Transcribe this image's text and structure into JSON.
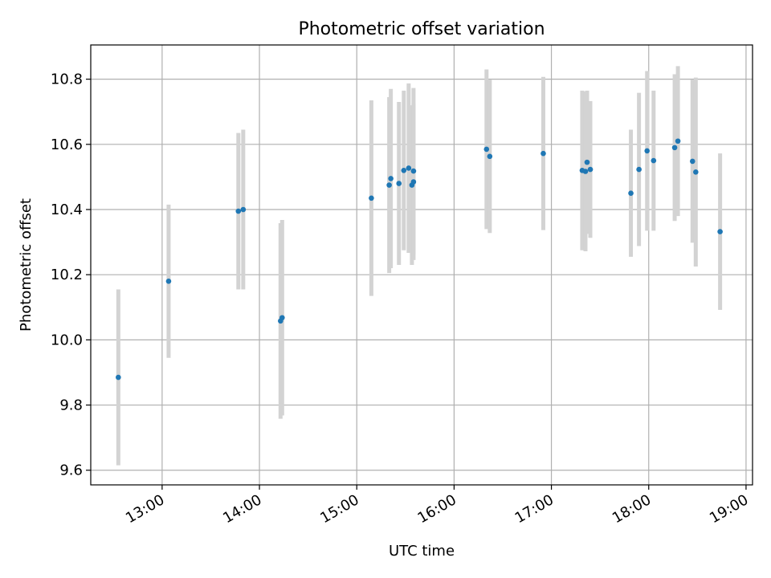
{
  "chart_data": {
    "type": "scatter",
    "title": "Photometric offset variation",
    "xlabel": "UTC time",
    "ylabel": "Photometric offset",
    "grid": true,
    "error_bars": true,
    "colors": {
      "points": "#1f77b4",
      "error_bars": "#d3d3d3",
      "grid": "#b0b0b0"
    },
    "xlim": [
      "12:16",
      "19:04"
    ],
    "ylim": [
      9.555,
      10.905
    ],
    "x_ticks": [
      "13:00",
      "14:00",
      "15:00",
      "16:00",
      "17:00",
      "18:00",
      "19:00"
    ],
    "y_ticks": [
      "9.6",
      "9.8",
      "10.0",
      "10.2",
      "10.4",
      "10.6",
      "10.8"
    ],
    "points": [
      {
        "x": "12:33",
        "y": 9.885,
        "err": 0.27
      },
      {
        "x": "13:04",
        "y": 10.18,
        "err": 0.235
      },
      {
        "x": "13:47",
        "y": 10.395,
        "err": 0.24
      },
      {
        "x": "13:50",
        "y": 10.4,
        "err": 0.245
      },
      {
        "x": "14:13",
        "y": 10.058,
        "err": 0.3
      },
      {
        "x": "14:14",
        "y": 10.068,
        "err": 0.3
      },
      {
        "x": "15:09",
        "y": 10.435,
        "err": 0.3
      },
      {
        "x": "15:20",
        "y": 10.475,
        "err": 0.27
      },
      {
        "x": "15:21",
        "y": 10.495,
        "err": 0.275
      },
      {
        "x": "15:26",
        "y": 10.48,
        "err": 0.25
      },
      {
        "x": "15:29",
        "y": 10.52,
        "err": 0.245
      },
      {
        "x": "15:32",
        "y": 10.527,
        "err": 0.26
      },
      {
        "x": "15:34",
        "y": 10.475,
        "err": 0.245
      },
      {
        "x": "15:35",
        "y": 10.485,
        "err": 0.24
      },
      {
        "x": "15:35",
        "y": 10.518,
        "err": 0.255
      },
      {
        "x": "16:20",
        "y": 10.585,
        "err": 0.245
      },
      {
        "x": "16:22",
        "y": 10.563,
        "err": 0.235
      },
      {
        "x": "16:55",
        "y": 10.572,
        "err": 0.235
      },
      {
        "x": "17:19",
        "y": 10.52,
        "err": 0.245
      },
      {
        "x": "17:21",
        "y": 10.517,
        "err": 0.245
      },
      {
        "x": "17:22",
        "y": 10.545,
        "err": 0.22
      },
      {
        "x": "17:24",
        "y": 10.523,
        "err": 0.21
      },
      {
        "x": "17:49",
        "y": 10.45,
        "err": 0.195
      },
      {
        "x": "17:54",
        "y": 10.523,
        "err": 0.235
      },
      {
        "x": "17:59",
        "y": 10.58,
        "err": 0.245
      },
      {
        "x": "18:03",
        "y": 10.55,
        "err": 0.215
      },
      {
        "x": "18:16",
        "y": 10.59,
        "err": 0.225
      },
      {
        "x": "18:18",
        "y": 10.61,
        "err": 0.23
      },
      {
        "x": "18:27",
        "y": 10.548,
        "err": 0.25
      },
      {
        "x": "18:29",
        "y": 10.515,
        "err": 0.29
      },
      {
        "x": "18:44",
        "y": 10.332,
        "err": 0.24
      }
    ]
  }
}
